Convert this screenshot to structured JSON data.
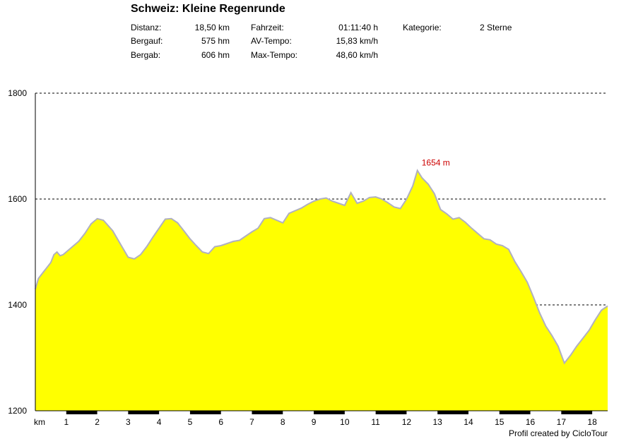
{
  "header": {
    "title": "Schweiz: Kleine Regenrunde",
    "stats": [
      {
        "label": "Distanz:",
        "value": "18,50 km"
      },
      {
        "label": "Bergauf:",
        "value": "575 hm"
      },
      {
        "label": "Bergab:",
        "value": "606 hm"
      },
      {
        "label": "Fahrzeit:",
        "value": "01:11:40 h"
      },
      {
        "label": "AV-Tempo:",
        "value": "15,83 km/h"
      },
      {
        "label": "Max-Tempo:",
        "value": "48,60 km/h"
      },
      {
        "label": "Kategorie:",
        "value": "2 Sterne"
      }
    ]
  },
  "footer": {
    "credit": "Profil created by CicloTour"
  },
  "colors": {
    "fill": "#ffff00",
    "line": "#b0b0c0",
    "peak_label": "#cc0000"
  },
  "chart_data": {
    "type": "area",
    "title": "Schweiz: Kleine Regenrunde",
    "xlabel": "km",
    "ylabel": "",
    "xlim": [
      0,
      18.5
    ],
    "ylim": [
      1200,
      1800
    ],
    "yticks": [
      1200,
      1400,
      1600,
      1800
    ],
    "xticks": [
      1,
      2,
      3,
      4,
      5,
      6,
      7,
      8,
      9,
      10,
      11,
      12,
      13,
      14,
      15,
      16,
      17,
      18
    ],
    "grid": "horizontal dashed",
    "annotation": {
      "text": "1654 m",
      "x": 12.35,
      "y": 1654
    },
    "series": [
      {
        "x": [
          0,
          0.1,
          0.3,
          0.5,
          0.6,
          0.7,
          0.8,
          0.9,
          1.0,
          1.2,
          1.4,
          1.6,
          1.8,
          2.0,
          2.2,
          2.5,
          2.8,
          3.0,
          3.2,
          3.4,
          3.6,
          3.8,
          4.0,
          4.2,
          4.4,
          4.6,
          4.8,
          5.0,
          5.2,
          5.4,
          5.6,
          5.8,
          6.0,
          6.2,
          6.4,
          6.6,
          6.8,
          7.0,
          7.2,
          7.4,
          7.6,
          7.8,
          8.0,
          8.2,
          8.4,
          8.6,
          8.8,
          9.0,
          9.2,
          9.4,
          9.6,
          9.8,
          10.0,
          10.2,
          10.4,
          10.6,
          10.8,
          11.0,
          11.2,
          11.4,
          11.6,
          11.8,
          12.0,
          12.2,
          12.35,
          12.5,
          12.7,
          12.9,
          13.1,
          13.3,
          13.5,
          13.7,
          13.9,
          14.1,
          14.3,
          14.5,
          14.7,
          14.9,
          15.1,
          15.3,
          15.5,
          15.7,
          15.9,
          16.1,
          16.3,
          16.5,
          16.7,
          16.9,
          17.1,
          17.3,
          17.5,
          17.7,
          17.9,
          18.1,
          18.3,
          18.5
        ],
        "y": [
          1430,
          1450,
          1465,
          1480,
          1495,
          1500,
          1493,
          1495,
          1500,
          1510,
          1520,
          1535,
          1553,
          1563,
          1560,
          1540,
          1510,
          1490,
          1487,
          1495,
          1510,
          1528,
          1545,
          1562,
          1563,
          1555,
          1540,
          1525,
          1512,
          1500,
          1497,
          1510,
          1512,
          1516,
          1520,
          1522,
          1530,
          1538,
          1545,
          1563,
          1565,
          1560,
          1555,
          1573,
          1578,
          1583,
          1590,
          1596,
          1600,
          1602,
          1596,
          1592,
          1588,
          1612,
          1592,
          1596,
          1603,
          1604,
          1600,
          1593,
          1585,
          1582,
          1600,
          1625,
          1654,
          1640,
          1628,
          1610,
          1580,
          1572,
          1562,
          1565,
          1556,
          1545,
          1535,
          1525,
          1523,
          1515,
          1512,
          1505,
          1482,
          1463,
          1443,
          1415,
          1385,
          1360,
          1342,
          1322,
          1290,
          1305,
          1322,
          1337,
          1352,
          1372,
          1390,
          1398
        ]
      }
    ]
  }
}
